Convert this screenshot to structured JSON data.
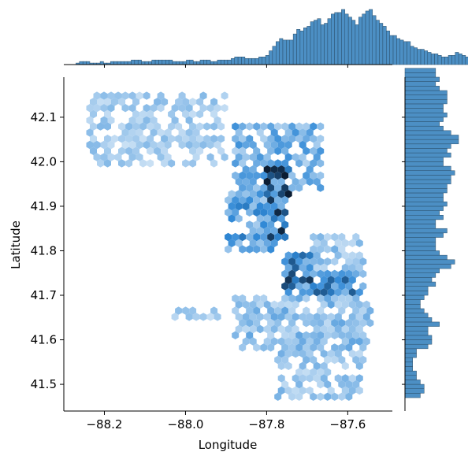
{
  "colors": {
    "bar_fill": "#4c8fc4",
    "bar_edge": "#2a4d68",
    "hex_light": "#eaf3fb",
    "hex_mid": "#2f88d6",
    "hex_dark": "#0b1d33",
    "axis": "#000000"
  },
  "chart_data": {
    "type": "hexbin",
    "xlabel": "Longitude",
    "ylabel": "Latitude",
    "xlim": [
      -88.3,
      -87.49
    ],
    "ylim": [
      41.44,
      42.19
    ],
    "xticks": [
      -88.2,
      -88.0,
      -87.8,
      -87.6
    ],
    "xtick_labels": [
      "−88.2",
      "−88.0",
      "−87.8",
      "−87.6"
    ],
    "yticks": [
      41.5,
      41.6,
      41.7,
      41.8,
      41.9,
      42.0,
      42.1
    ],
    "ytick_labels": [
      "41.5",
      "41.6",
      "41.7",
      "41.8",
      "41.9",
      "42.0",
      "42.1"
    ],
    "grid": false,
    "legend": "none",
    "hexbin_regions": [
      {
        "lon": [
          -87.8,
          -87.74
        ],
        "lat": [
          41.9,
          41.99
        ],
        "density": 1.0
      },
      {
        "lon": [
          -87.8,
          -87.75
        ],
        "lat": [
          41.83,
          41.91
        ],
        "density": 0.9
      },
      {
        "lon": [
          -87.76,
          -87.68
        ],
        "lat": [
          41.7,
          41.8
        ],
        "density": 0.85
      },
      {
        "lon": [
          -87.68,
          -87.56
        ],
        "lat": [
          41.7,
          41.76
        ],
        "density": 0.7
      },
      {
        "lon": [
          -87.9,
          -87.78
        ],
        "lat": [
          41.8,
          41.93
        ],
        "density": 0.6
      },
      {
        "lon": [
          -87.88,
          -87.66
        ],
        "lat": [
          41.94,
          42.08
        ],
        "density": 0.5
      },
      {
        "lon": [
          -88.25,
          -87.9
        ],
        "lat": [
          41.99,
          42.16
        ],
        "density": 0.3
      },
      {
        "lon": [
          -87.88,
          -87.54
        ],
        "lat": [
          41.58,
          41.7
        ],
        "density": 0.4
      },
      {
        "lon": [
          -87.78,
          -87.56
        ],
        "lat": [
          41.47,
          41.58
        ],
        "density": 0.35
      },
      {
        "lon": [
          -88.04,
          -87.92
        ],
        "lat": [
          41.64,
          41.67
        ],
        "density": 0.3
      },
      {
        "lon": [
          -87.7,
          -87.56
        ],
        "lat": [
          41.76,
          41.84
        ],
        "density": 0.35
      }
    ],
    "x_marginal": {
      "bin_start": -88.27,
      "bin_width": 0.0085,
      "counts": [
        1,
        2,
        2,
        2,
        1,
        1,
        1,
        2,
        1,
        1,
        2,
        2,
        2,
        2,
        2,
        2,
        3,
        3,
        3,
        2,
        2,
        2,
        3,
        3,
        3,
        3,
        3,
        3,
        2,
        2,
        2,
        2,
        3,
        3,
        2,
        2,
        3,
        3,
        3,
        2,
        2,
        3,
        3,
        3,
        3,
        4,
        5,
        5,
        5,
        4,
        4,
        4,
        4,
        5,
        5,
        6,
        9,
        12,
        15,
        17,
        16,
        16,
        16,
        20,
        23,
        22,
        24,
        25,
        28,
        29,
        30,
        26,
        27,
        30,
        33,
        34,
        34,
        36,
        33,
        31,
        29,
        26,
        31,
        33,
        35,
        36,
        32,
        29,
        27,
        25,
        22,
        19,
        19,
        17,
        16,
        15,
        15,
        12,
        11,
        10,
        10,
        9,
        8,
        7,
        7,
        6,
        5,
        5,
        6,
        6,
        8,
        7,
        6,
        5,
        5,
        4,
        6
      ]
    },
    "y_marginal": {
      "bin_start": 41.47,
      "bin_width": 0.01,
      "counts": [
        4,
        5,
        5,
        4,
        3,
        3,
        2,
        2,
        2,
        3,
        3,
        6,
        7,
        7,
        6,
        6,
        9,
        7,
        6,
        5,
        4,
        4,
        5,
        6,
        6,
        8,
        7,
        8,
        9,
        12,
        13,
        11,
        9,
        8,
        8,
        8,
        10,
        11,
        8,
        8,
        10,
        9,
        10,
        11,
        10,
        10,
        11,
        11,
        12,
        12,
        13,
        12,
        10,
        10,
        12,
        11,
        12,
        14,
        14,
        12,
        10,
        9,
        10,
        11,
        10,
        10,
        11,
        11,
        11,
        9,
        8,
        9,
        8,
        8
      ]
    }
  }
}
